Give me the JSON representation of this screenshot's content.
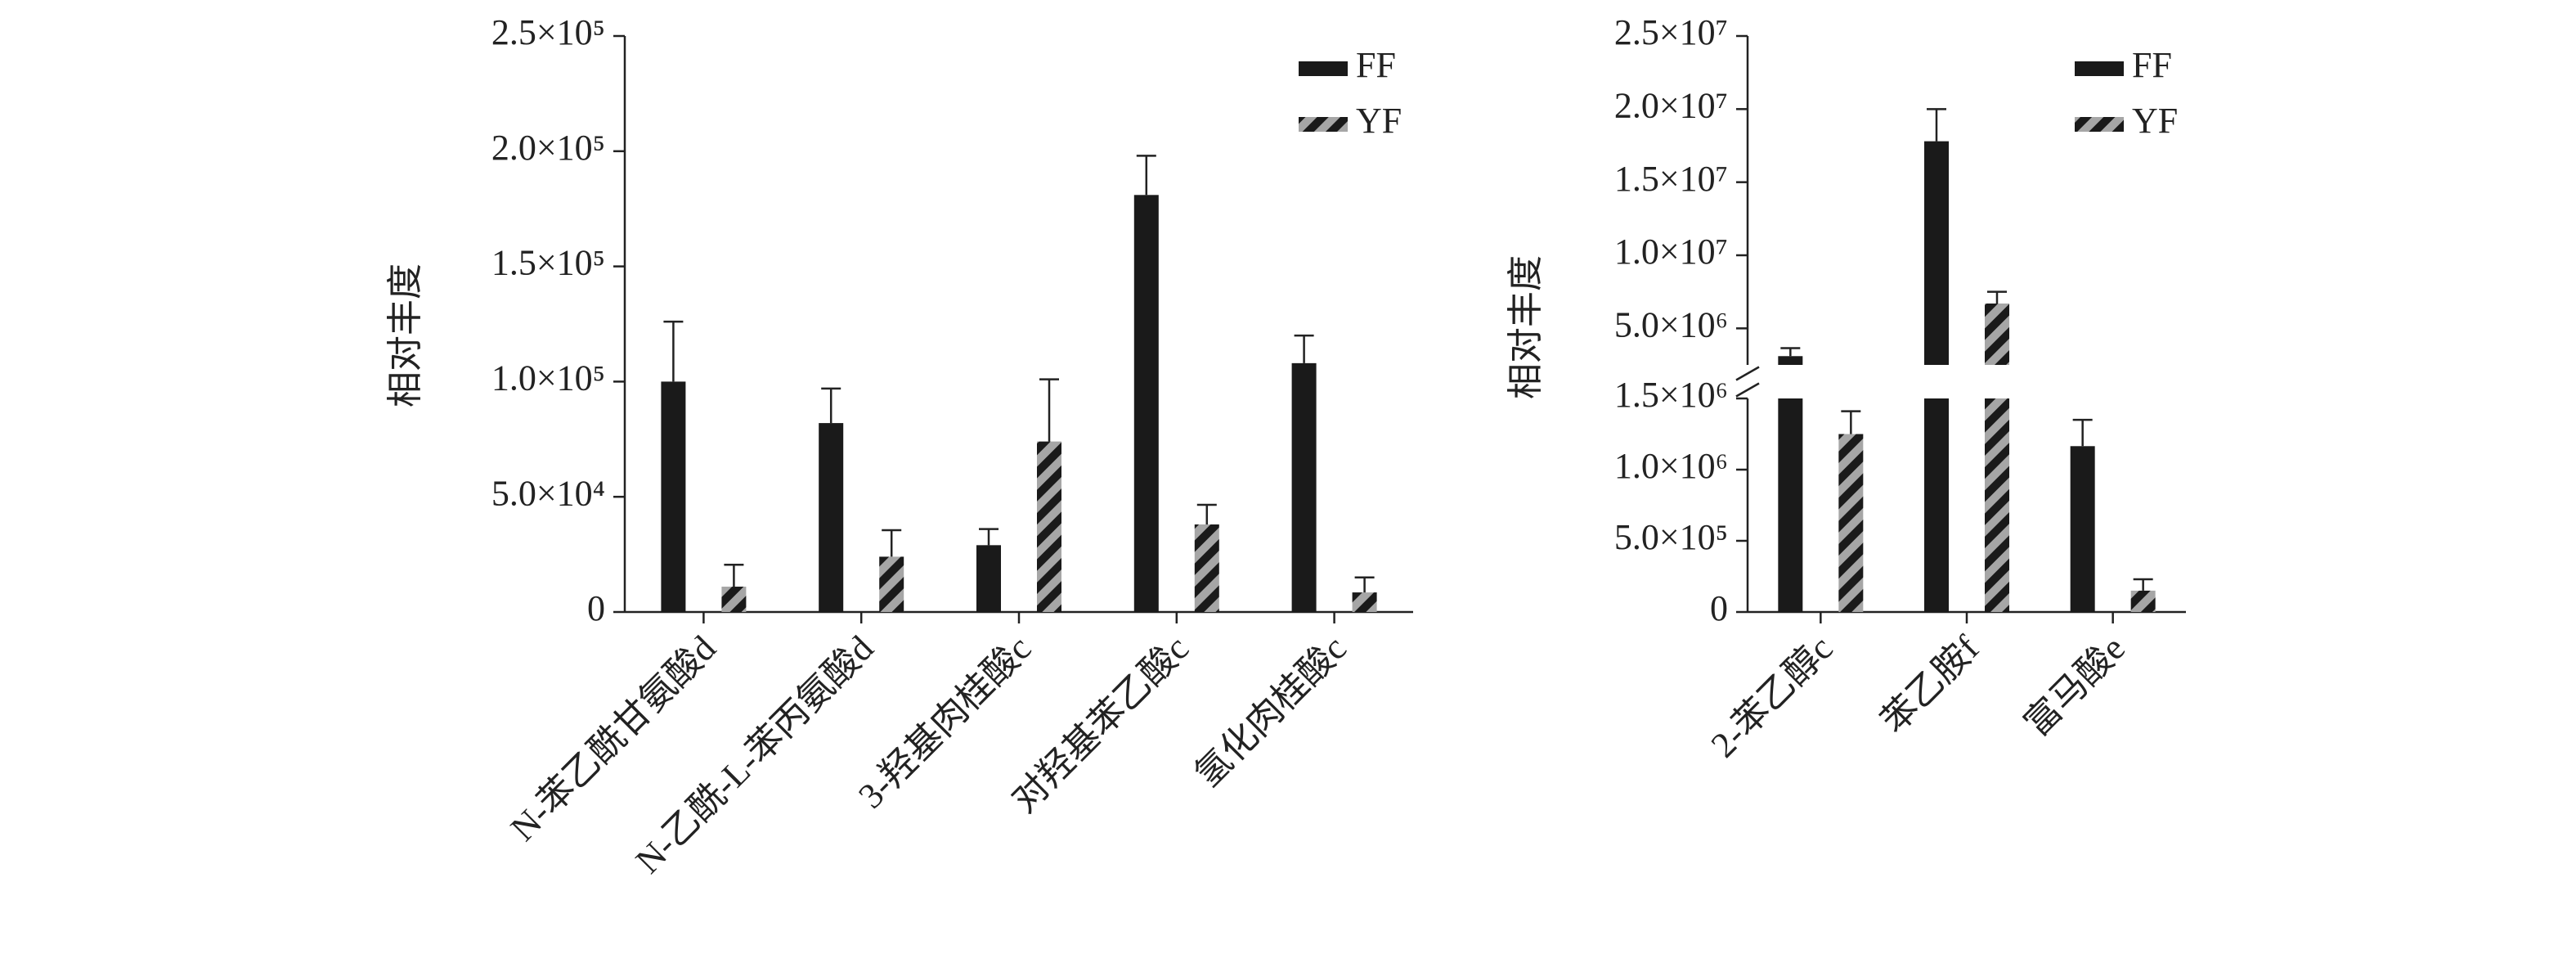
{
  "chart_data": [
    {
      "type": "bar",
      "y_label": "相对丰度",
      "categories": [
        "N-苯乙酰甘氨酸d",
        "N-乙酰-L-苯丙氨酸d",
        "3-羟基肉桂酸c",
        "对羟基苯乙酸c",
        "氢化肉桂酸c"
      ],
      "series": [
        {
          "name": "FF",
          "color": "#1a1a1a",
          "values": [
            100000,
            82000,
            29000,
            181000,
            108000
          ],
          "errors": [
            26000,
            15000,
            7000,
            17000,
            12000
          ]
        },
        {
          "name": "YF",
          "color": "#a6a6a6",
          "hatch": true,
          "values": [
            11000,
            24000,
            74000,
            38000,
            8500
          ],
          "errors": [
            9500,
            11500,
            27000,
            8500,
            6500
          ]
        }
      ],
      "ylim": [
        0,
        250000
      ],
      "yticks": [
        0,
        {
          "value": 50000,
          "label": "5.0×10⁴"
        },
        {
          "value": 100000,
          "label": "1.0×10⁵"
        },
        {
          "value": 150000,
          "label": "1.5×10⁵"
        },
        {
          "value": 200000,
          "label": "2.0×10⁵"
        },
        {
          "value": 250000,
          "label": "2.5×10⁵"
        }
      ],
      "legend": "upper right"
    },
    {
      "type": "bar",
      "y_label": "相对丰度",
      "categories": [
        "2-苯乙醇c",
        "苯乙胺f",
        "富马酸e"
      ],
      "series": [
        {
          "name": "FF",
          "color": "#1a1a1a",
          "values": [
            3100000,
            17800000,
            1165000
          ],
          "errors": [
            550000,
            2200000,
            185000
          ]
        },
        {
          "name": "YF",
          "color": "#a6a6a6",
          "hatch": true,
          "values": [
            1250000,
            6700000,
            150000
          ],
          "errors": [
            160000,
            800000,
            80000
          ]
        }
      ],
      "segments": [
        {
          "ylim": [
            0,
            1500000
          ],
          "yticks": [
            0,
            {
              "value": 500000,
              "label": "5.0×10⁵"
            },
            {
              "value": 1000000,
              "label": "1.0×10⁶"
            },
            {
              "value": 1500000,
              "label": "1.5×10⁶"
            }
          ]
        },
        {
          "ylim": [
            2500000,
            25000000
          ],
          "yticks": [
            {
              "value": 5000000,
              "label": "5.0×10⁶"
            },
            {
              "value": 10000000,
              "label": "1.0×10⁷"
            },
            {
              "value": 15000000,
              "label": "1.5×10⁷"
            },
            {
              "value": 20000000,
              "label": "2.0×10⁷"
            },
            {
              "value": 25000000,
              "label": "2.5×10⁷"
            }
          ]
        }
      ],
      "legend": "upper right"
    }
  ]
}
